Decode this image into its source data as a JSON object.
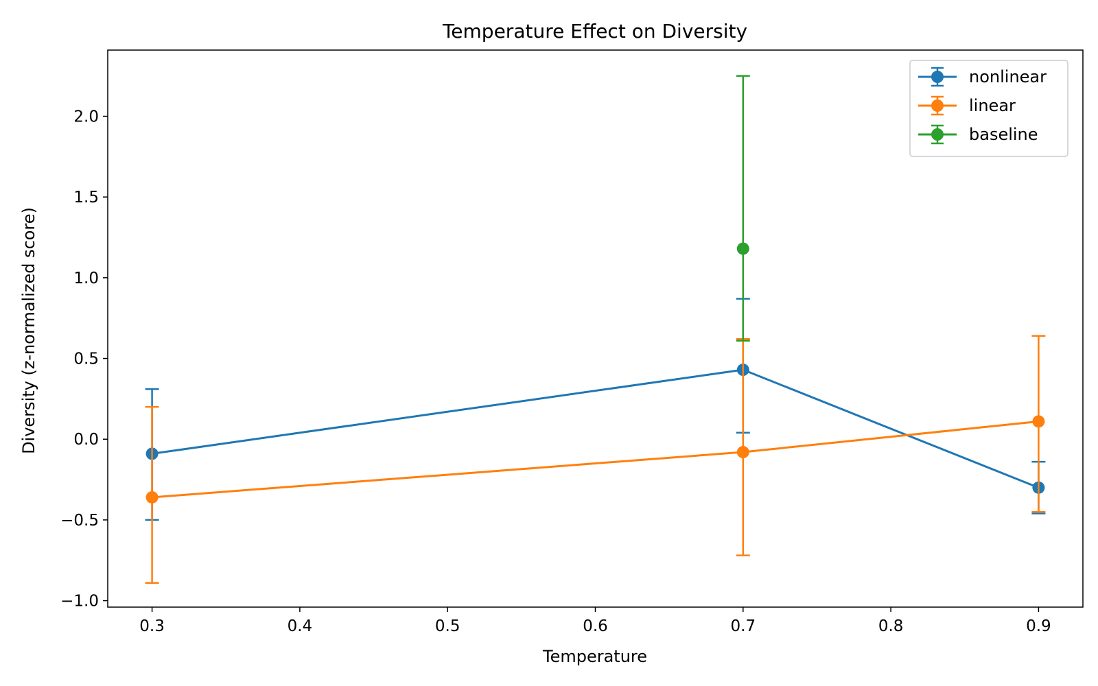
{
  "chart_data": {
    "type": "line",
    "title": "Temperature Effect on Diversity",
    "xlabel": "Temperature",
    "ylabel": "Diversity (z-normalized score)",
    "xlim": [
      0.27,
      0.93
    ],
    "ylim": [
      -1.04,
      2.41
    ],
    "x_ticks": [
      0.3,
      0.4,
      0.5,
      0.6,
      0.7,
      0.8,
      0.9
    ],
    "x_tick_labels": [
      "0.3",
      "0.4",
      "0.5",
      "0.6",
      "0.7",
      "0.8",
      "0.9"
    ],
    "y_ticks": [
      -1.0,
      -0.5,
      0.0,
      0.5,
      1.0,
      1.5,
      2.0
    ],
    "y_tick_labels": [
      "−1.0",
      "−0.5",
      "0.0",
      "0.5",
      "1.0",
      "1.5",
      "2.0"
    ],
    "grid": false,
    "legend_position": "top-right",
    "error_bars": true,
    "series": [
      {
        "name": "nonlinear",
        "color": "#1f77b4",
        "x": [
          0.3,
          0.7,
          0.9
        ],
        "y": [
          -0.09,
          0.43,
          -0.3
        ],
        "err_low": [
          -0.5,
          0.04,
          -0.46
        ],
        "err_high": [
          0.31,
          0.87,
          -0.14
        ]
      },
      {
        "name": "linear",
        "color": "#ff7f0e",
        "x": [
          0.3,
          0.7,
          0.9
        ],
        "y": [
          -0.36,
          -0.08,
          0.11
        ],
        "err_low": [
          -0.89,
          -0.72,
          -0.45
        ],
        "err_high": [
          0.2,
          0.62,
          0.64
        ]
      },
      {
        "name": "baseline",
        "color": "#2ca02c",
        "x": [
          0.7
        ],
        "y": [
          1.18
        ],
        "err_low": [
          0.61
        ],
        "err_high": [
          2.25
        ]
      }
    ]
  }
}
